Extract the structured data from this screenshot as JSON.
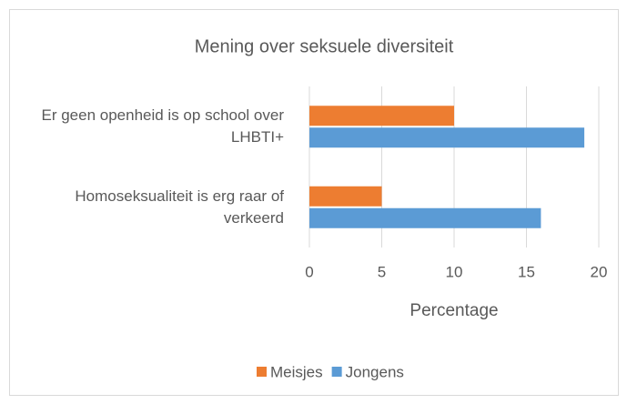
{
  "chart_data": {
    "type": "bar",
    "orientation": "horizontal",
    "title": "Mening over seksuele diversiteit",
    "categories": [
      "Er geen openheid is op school over LHBTI+",
      "Homoseksualiteit is erg raar of verkeerd"
    ],
    "series": [
      {
        "name": "Meisjes",
        "color": "#ed7d31",
        "values": [
          10,
          5
        ]
      },
      {
        "name": "Jongens",
        "color": "#5b9bd5",
        "values": [
          19,
          16
        ]
      }
    ],
    "xlabel": "Percentage",
    "xlim": [
      0,
      20
    ],
    "xticks": [
      0,
      5,
      10,
      15,
      20
    ],
    "grid": true,
    "legend": "bottom"
  }
}
